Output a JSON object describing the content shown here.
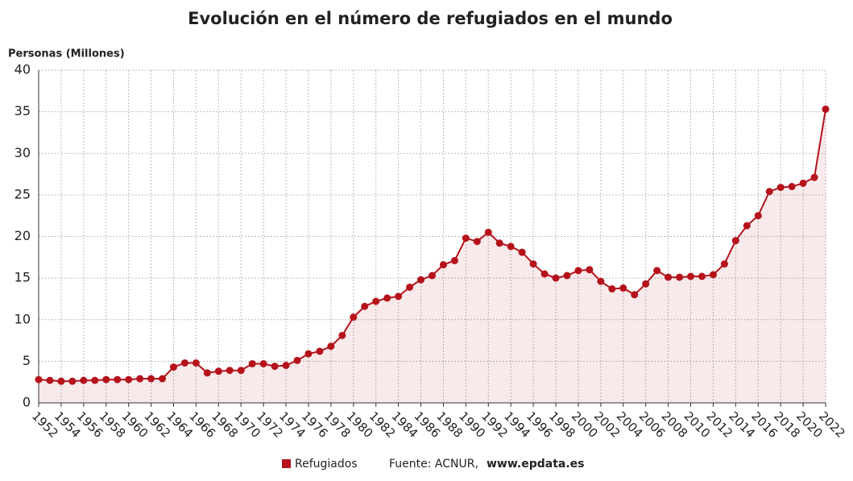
{
  "chart_data": {
    "type": "line",
    "title": "Evolución en el número de refugiados en el mundo",
    "y_axis_label": "Personas (Millones)",
    "source": "Fuente: ACNUR,",
    "source_site": "www.epdata.es",
    "x": [
      1952,
      1953,
      1954,
      1955,
      1956,
      1957,
      1958,
      1959,
      1960,
      1961,
      1962,
      1963,
      1964,
      1965,
      1966,
      1967,
      1968,
      1969,
      1970,
      1971,
      1972,
      1973,
      1974,
      1975,
      1976,
      1977,
      1978,
      1979,
      1980,
      1981,
      1982,
      1983,
      1984,
      1985,
      1986,
      1987,
      1988,
      1989,
      1990,
      1991,
      1992,
      1993,
      1994,
      1995,
      1996,
      1997,
      1998,
      1999,
      2000,
      2001,
      2002,
      2003,
      2004,
      2005,
      2006,
      2007,
      2008,
      2009,
      2010,
      2011,
      2012,
      2013,
      2014,
      2015,
      2016,
      2017,
      2018,
      2019,
      2020,
      2021,
      2022
    ],
    "series": [
      {
        "name": "Refugiados",
        "color": "#b5121b",
        "values": [
          2.8,
          2.7,
          2.6,
          2.6,
          2.7,
          2.7,
          2.8,
          2.8,
          2.8,
          2.9,
          2.9,
          2.9,
          4.3,
          4.8,
          4.8,
          3.6,
          3.8,
          3.9,
          3.9,
          4.7,
          4.7,
          4.4,
          4.5,
          5.1,
          5.9,
          6.2,
          6.8,
          8.1,
          10.3,
          11.6,
          12.2,
          12.6,
          12.8,
          13.9,
          14.8,
          15.3,
          16.6,
          17.1,
          19.8,
          19.4,
          20.5,
          19.2,
          18.8,
          18.1,
          16.7,
          15.5,
          15.0,
          15.3,
          15.9,
          16.0,
          14.6,
          13.7,
          13.8,
          13.0,
          14.3,
          15.9,
          15.1,
          15.1,
          15.2,
          15.2,
          15.4,
          16.7,
          19.5,
          21.3,
          22.5,
          25.4,
          25.9,
          26.0,
          26.4,
          27.1,
          35.3
        ]
      }
    ],
    "xlim": [
      1952,
      2022
    ],
    "xticks": [
      1952,
      1954,
      1956,
      1958,
      1960,
      1962,
      1964,
      1966,
      1968,
      1970,
      1972,
      1974,
      1976,
      1978,
      1980,
      1982,
      1984,
      1986,
      1988,
      1990,
      1992,
      1994,
      1996,
      1998,
      2000,
      2002,
      2004,
      2006,
      2008,
      2010,
      2012,
      2014,
      2016,
      2018,
      2020,
      2022
    ],
    "ylim": [
      0,
      40
    ],
    "yticks": [
      0,
      5,
      10,
      15,
      20,
      25,
      30,
      35,
      40
    ],
    "grid": true
  }
}
